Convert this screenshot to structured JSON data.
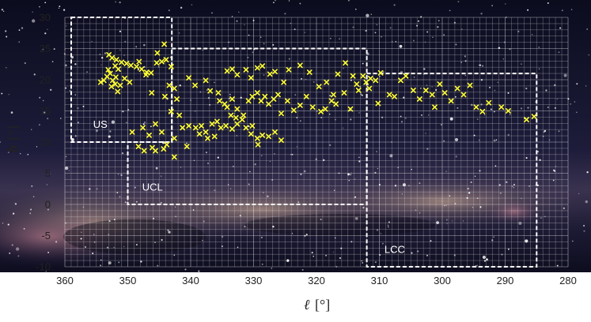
{
  "chart_data": {
    "type": "scatter",
    "xlabel": "ℓ",
    "xunit": "[°]",
    "ylabel": "b",
    "yunit": "[°]",
    "xlim": [
      360,
      280
    ],
    "ylim": [
      -10,
      30
    ],
    "x_reversed": true,
    "grid": true,
    "background": "milky-way-photograph",
    "marker": "x",
    "marker_color": "#ffff33",
    "xticks": [
      "360",
      "350",
      "340",
      "330",
      "320",
      "310",
      "300",
      "290",
      "280"
    ],
    "yticks": [
      "-10",
      "-5",
      "0",
      "5",
      "10",
      "15",
      "20",
      "25",
      "30"
    ],
    "regions": [
      {
        "label": "US",
        "outline": [
          [
            359,
            30
          ],
          [
            343,
            30
          ],
          [
            343,
            10
          ],
          [
            359,
            10
          ]
        ]
      },
      {
        "label": "UCL",
        "outline": [
          [
            343,
            25
          ],
          [
            312,
            25
          ],
          [
            312,
            0
          ],
          [
            350,
            0
          ],
          [
            350,
            10
          ],
          [
            343,
            10
          ]
        ]
      },
      {
        "label": "LCC",
        "outline": [
          [
            312,
            21
          ],
          [
            285,
            21
          ],
          [
            285,
            -10
          ],
          [
            312,
            -10
          ]
        ]
      }
    ],
    "points": [
      [
        353,
        24
      ],
      [
        352.5,
        23.5
      ],
      [
        351.8,
        23.2
      ],
      [
        351,
        22.8
      ],
      [
        350.2,
        22.6
      ],
      [
        349.5,
        22.3
      ],
      [
        348.6,
        22.1
      ],
      [
        347.8,
        21.7
      ],
      [
        347,
        21.2
      ],
      [
        352,
        22.2
      ],
      [
        351.5,
        21.7
      ],
      [
        352.8,
        21
      ],
      [
        353.3,
        20.5
      ],
      [
        353.8,
        19.9
      ],
      [
        354.3,
        19.6
      ],
      [
        352,
        19.3
      ],
      [
        351.2,
        19.1
      ],
      [
        350.5,
        20.2
      ],
      [
        349.7,
        19.6
      ],
      [
        351.9,
        20.4
      ],
      [
        352.4,
        19.9
      ],
      [
        353.1,
        21.6
      ],
      [
        348.2,
        22.9
      ],
      [
        347.1,
        20.8
      ],
      [
        346.3,
        21.1
      ],
      [
        345.4,
        22.7
      ],
      [
        344.6,
        22.9
      ],
      [
        343.9,
        23.2
      ],
      [
        344.2,
        25.7
      ],
      [
        345.3,
        24.3
      ],
      [
        343.1,
        22.1
      ],
      [
        346.2,
        17.9
      ],
      [
        344.1,
        17.3
      ],
      [
        343.4,
        19.1
      ],
      [
        342.6,
        18.6
      ],
      [
        342.2,
        16.9
      ],
      [
        343.1,
        14.9
      ],
      [
        341.8,
        14.3
      ],
      [
        352.6,
        18.9
      ],
      [
        351.6,
        18.1
      ],
      [
        340.3,
        20.3
      ],
      [
        339.3,
        19.1
      ],
      [
        337.6,
        19.9
      ],
      [
        336.9,
        18.2
      ],
      [
        335.6,
        17.9
      ],
      [
        334.2,
        21.4
      ],
      [
        333.4,
        21.7
      ],
      [
        332.6,
        20.8
      ],
      [
        331.2,
        21.6
      ],
      [
        330.4,
        20.3
      ],
      [
        329.4,
        21.9
      ],
      [
        328.6,
        22.2
      ],
      [
        327.4,
        20.9
      ],
      [
        326.6,
        21.3
      ],
      [
        325.2,
        19.6
      ],
      [
        324.4,
        21.6
      ],
      [
        322.6,
        22.3
      ],
      [
        321.1,
        21.2
      ],
      [
        319.6,
        18.9
      ],
      [
        318.4,
        19.6
      ],
      [
        317.3,
        17.6
      ],
      [
        316.6,
        20.9
      ],
      [
        315.4,
        22.7
      ],
      [
        314.2,
        20.6
      ],
      [
        313.3,
        18.3
      ],
      [
        335.4,
        16.6
      ],
      [
        334.6,
        16.1
      ],
      [
        334.2,
        15.6
      ],
      [
        333.4,
        16.9
      ],
      [
        332.6,
        15.3
      ],
      [
        331.6,
        14.3
      ],
      [
        330.8,
        16.6
      ],
      [
        330.2,
        17.3
      ],
      [
        329.4,
        17.9
      ],
      [
        328.8,
        16.6
      ],
      [
        328.2,
        17.3
      ],
      [
        327.6,
        16.1
      ],
      [
        326.8,
        16.9
      ],
      [
        326.1,
        17.6
      ],
      [
        325.6,
        14.6
      ],
      [
        324.6,
        16.6
      ],
      [
        323.6,
        15.1
      ],
      [
        322.6,
        15.9
      ],
      [
        321.6,
        17.3
      ],
      [
        320.6,
        15.6
      ],
      [
        319.3,
        14.9
      ],
      [
        318.6,
        15.3
      ],
      [
        317.6,
        16.6
      ],
      [
        316.9,
        16.1
      ],
      [
        315.6,
        17.9
      ],
      [
        314.6,
        15.3
      ],
      [
        339.2,
        12.3
      ],
      [
        338.3,
        12.6
      ],
      [
        337.6,
        11.6
      ],
      [
        336.6,
        12.9
      ],
      [
        335.8,
        13.3
      ],
      [
        334.4,
        12.6
      ],
      [
        333.4,
        12.1
      ],
      [
        332.6,
        12.9
      ],
      [
        331.8,
        13.6
      ],
      [
        330.4,
        11.3
      ],
      [
        329.4,
        10.6
      ],
      [
        328.6,
        11.1
      ],
      [
        327.6,
        10.9
      ],
      [
        326.6,
        11.6
      ],
      [
        325.6,
        10.3
      ],
      [
        340.6,
        9.3
      ],
      [
        341.3,
        12.3
      ],
      [
        342.6,
        10.6
      ],
      [
        343.8,
        9.6
      ],
      [
        344.6,
        11.6
      ],
      [
        345.6,
        12.9
      ],
      [
        346.6,
        11.1
      ],
      [
        347.4,
        8.6
      ],
      [
        348.3,
        9.3
      ],
      [
        342.6,
        7.6
      ],
      [
        345.6,
        8.6
      ],
      [
        346.1,
        9.1
      ],
      [
        340.3,
        12.6
      ],
      [
        337.3,
        10.6
      ],
      [
        338.6,
        11.3
      ],
      [
        335.2,
        12.3
      ],
      [
        336.2,
        10.9
      ],
      [
        333.6,
        14.3
      ],
      [
        332.8,
        13.9
      ],
      [
        330.2,
        12.6
      ],
      [
        329.3,
        9.6
      ],
      [
        331.2,
        12.3
      ],
      [
        349.3,
        11.6
      ],
      [
        347.6,
        12.3
      ],
      [
        344.3,
        8.9
      ],
      [
        312.1,
        19.6
      ],
      [
        311.4,
        20.2
      ],
      [
        310.6,
        19.9
      ],
      [
        309.8,
        21.1
      ],
      [
        308.4,
        17.6
      ],
      [
        307.6,
        17.3
      ],
      [
        306.6,
        19.9
      ],
      [
        305.8,
        20.6
      ],
      [
        304.6,
        18.3
      ],
      [
        303.6,
        16.9
      ],
      [
        302.6,
        18.3
      ],
      [
        301.6,
        17.6
      ],
      [
        300.4,
        19.3
      ],
      [
        299.6,
        17.9
      ],
      [
        298.6,
        16.6
      ],
      [
        297.6,
        18.6
      ],
      [
        296.6,
        17.6
      ],
      [
        295.6,
        19.1
      ],
      [
        294.6,
        15.6
      ],
      [
        293.6,
        14.9
      ],
      [
        292.6,
        16.3
      ],
      [
        290.6,
        15.6
      ],
      [
        286.6,
        13.6
      ],
      [
        285.4,
        14.1
      ],
      [
        289.5,
        15
      ],
      [
        310.2,
        16.2
      ],
      [
        311.6,
        18.6
      ],
      [
        312.6,
        20.6
      ],
      [
        313.6,
        19.3
      ],
      [
        301.2,
        15.6
      ]
    ]
  }
}
